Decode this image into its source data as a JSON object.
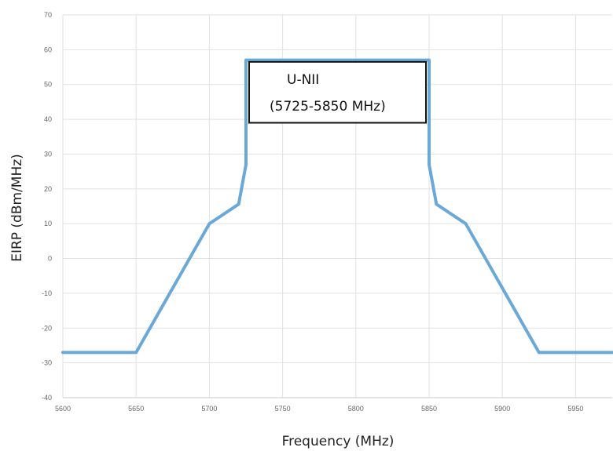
{
  "chart_data": {
    "type": "line",
    "xlabel": "Frequency (MHz)",
    "ylabel": "EIRP (dBm/MHz)",
    "xlim": [
      5600,
      5975
    ],
    "ylim": [
      -40,
      70
    ],
    "x_ticks": [
      5600,
      5650,
      5700,
      5750,
      5800,
      5850,
      5900,
      5950
    ],
    "y_ticks": [
      70,
      60,
      50,
      40,
      30,
      20,
      10,
      0,
      -10,
      -20,
      -30,
      -40
    ],
    "grid": true,
    "legend": "none",
    "series": [
      {
        "color": "#6aa8d8",
        "x": [
          5600,
          5650,
          5700,
          5720,
          5725,
          5725,
          5850,
          5850,
          5855,
          5875,
          5925,
          5975
        ],
        "y": [
          -27,
          -27,
          10,
          15.6,
          27,
          57,
          57,
          27,
          15.6,
          10,
          -27,
          -27
        ]
      }
    ],
    "annotation": {
      "line1": "U-NII",
      "line2": "(5725-5850 MHz)"
    }
  }
}
